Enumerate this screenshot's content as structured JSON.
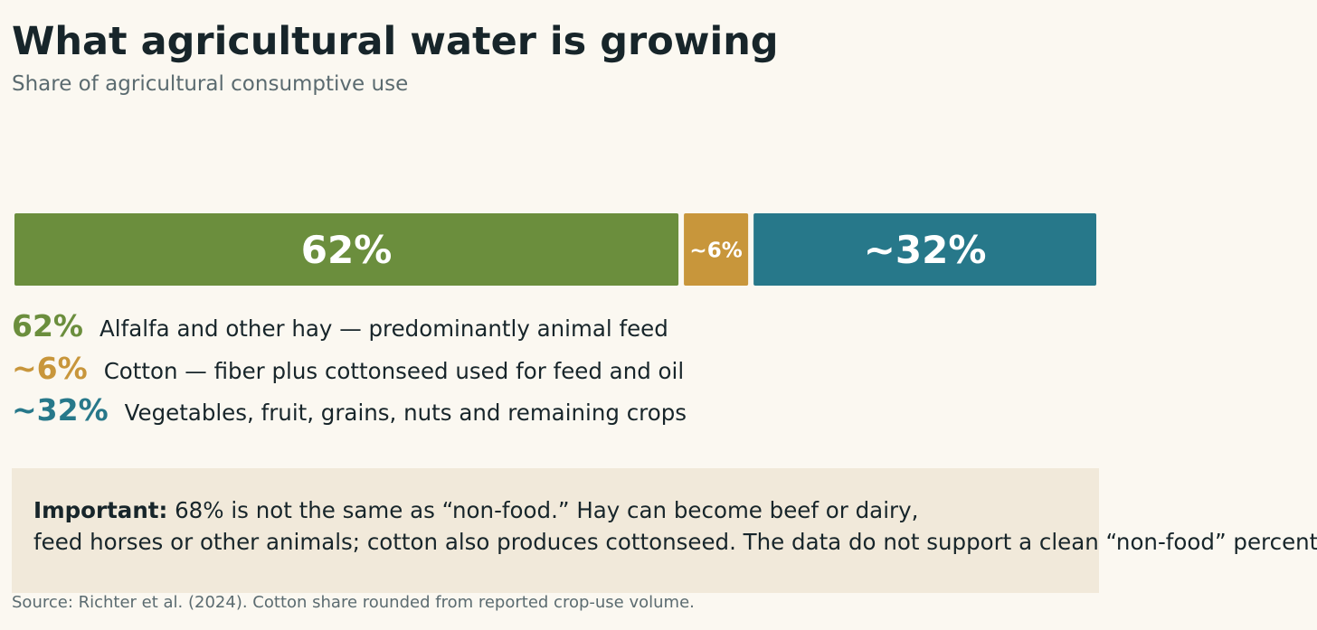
{
  "title": "What agricultural water is growing",
  "subtitle": "Share of agricultural consumptive use",
  "chart_data": {
    "type": "bar",
    "orientation": "horizontal-stacked",
    "categories": [
      "Alfalfa and other hay",
      "Cotton",
      "Vegetables, fruit, grains, nuts and remaining crops"
    ],
    "values": [
      62,
      6,
      32
    ],
    "data_labels": [
      "62%",
      "~6%",
      "~32%"
    ],
    "colors": [
      "#6b8e3d",
      "#c8963b",
      "#27788a"
    ],
    "xlim": [
      0,
      100
    ],
    "grid": false,
    "legend_position": "below"
  },
  "legend": [
    {
      "value": "62%",
      "label": "Alfalfa and other hay — predominantly animal feed",
      "color": "#6b8e3d"
    },
    {
      "value": "~6%",
      "label": "Cotton — fiber plus cottonseed used for feed and oil",
      "color": "#c8963b"
    },
    {
      "value": "~32%",
      "label": "Vegetables, fruit, grains, nuts and remaining crops",
      "color": "#27788a"
    }
  ],
  "note": {
    "strong": "Important:",
    "line1": "68% is not the same as “non-food.” Hay can become beef or dairy,",
    "line2": "feed horses or other animals; cotton also produces cottonseed. The data do not support a clean “non-food” percentage."
  },
  "source": "Source: Richter et al. (2024). Cotton share rounded from reported crop-use volume."
}
